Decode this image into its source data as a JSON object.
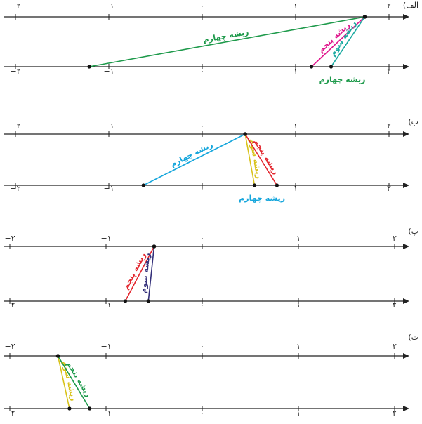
{
  "colors": {
    "axis": "#222222",
    "green": "#1e9a4b",
    "magenta": "#e0148c",
    "teal": "#19a9a0",
    "cyan": "#15a6dc",
    "yellow": "#d8c21a",
    "red": "#e3262e",
    "navy": "#34307a"
  },
  "tick_values": [
    "-2",
    "-1",
    "0",
    "1",
    "2"
  ],
  "tick_labels": [
    "−۲",
    "−۱",
    "۰",
    "۱",
    "۲"
  ],
  "panels": [
    {
      "label": "(الف",
      "source": 1.74,
      "segments": [
        {
          "text": "ریشه چهارم",
          "color": "green",
          "end": -1.21,
          "label_pos": "line"
        },
        {
          "text": "ریشه پنجم",
          "color": "magenta",
          "end": 1.17,
          "label_pos": "line"
        },
        {
          "text": "ریشه سوم",
          "color": "teal",
          "end": 1.38,
          "label_pos": "line"
        },
        {
          "text": "ریشه چهارم",
          "color": "green",
          "end": 1.5,
          "label_pos": "below"
        }
      ]
    },
    {
      "label": "(ب",
      "source": 0.46,
      "segments": [
        {
          "text": "ریشه چهارم",
          "color": "cyan",
          "end": -0.63,
          "label_pos": "line"
        },
        {
          "text": "ریشه سوم",
          "color": "yellow",
          "end": 0.56,
          "label_pos": "line"
        },
        {
          "text": "ریشه پنجم",
          "color": "red",
          "end": 0.8,
          "label_pos": "line"
        },
        {
          "text": "ریشه چهارم",
          "color": "cyan",
          "end": 0.64,
          "label_pos": "below"
        }
      ]
    },
    {
      "label": "(پ",
      "source": -0.5,
      "segments": [
        {
          "text": "ریشه پنجم",
          "color": "red",
          "end": -0.8,
          "label_pos": "line"
        },
        {
          "text": "ریشه سوم",
          "color": "navy",
          "end": -0.56,
          "label_pos": "line"
        }
      ]
    },
    {
      "label": "(ت",
      "source": -1.5,
      "segments": [
        {
          "text": "ریشه سوم",
          "color": "yellow",
          "end": -1.38,
          "label_pos": "line"
        },
        {
          "text": "ریشه پنجم",
          "color": "green",
          "end": -1.17,
          "label_pos": "line"
        }
      ]
    }
  ]
}
